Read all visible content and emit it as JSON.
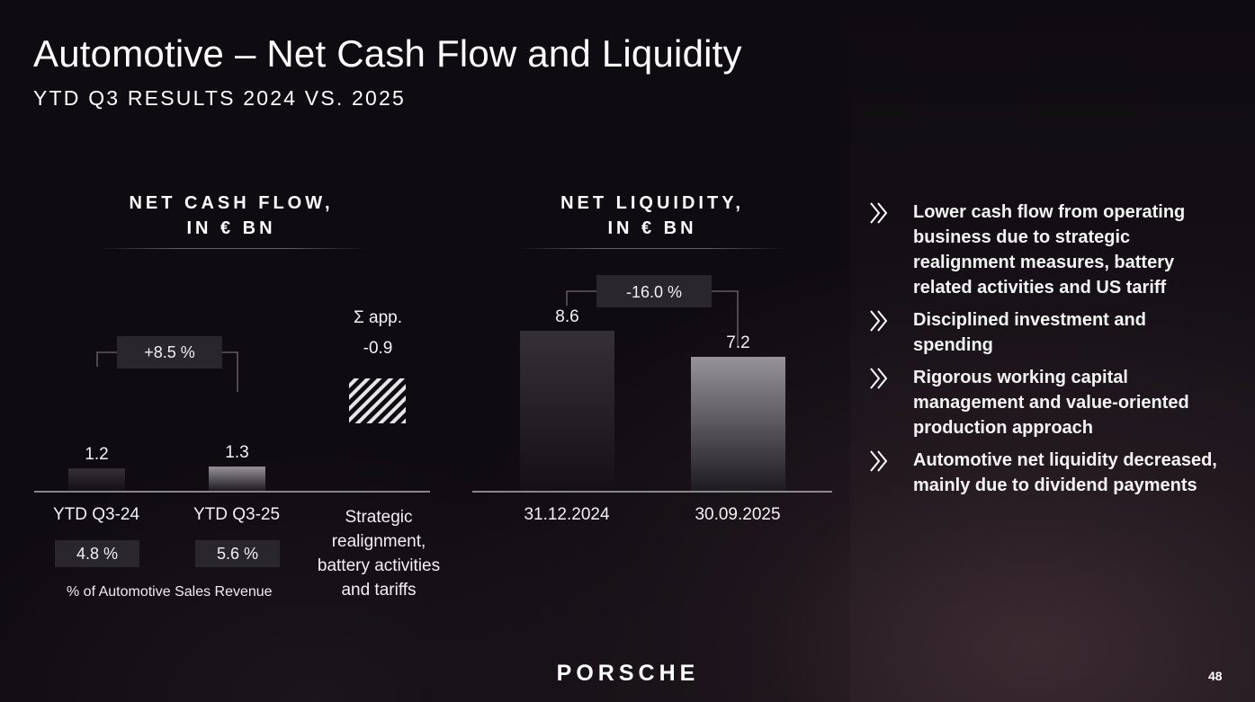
{
  "header": {
    "title": "Automotive – Net Cash Flow and Liquidity",
    "subtitle": "YTD Q3 RESULTS 2024 VS. 2025"
  },
  "chart_data": [
    {
      "type": "bar",
      "title": [
        "NET CASH FLOW,",
        "IN € BN"
      ],
      "categories": [
        "YTD Q3-24",
        "YTD Q3-25"
      ],
      "values": [
        1.2,
        1.3
      ],
      "value_labels": [
        "1.2",
        "1.3"
      ],
      "change_label": "+8.5 %",
      "ylim": [
        0,
        8.6
      ],
      "sub_values": [
        "4.8 %",
        "5.6 %"
      ],
      "sub_values_note": "% of Automotive Sales Revenue",
      "extra_item": {
        "symbol_label": "Σ app.",
        "value_label": "-0.9",
        "value": -0.9,
        "category_lines": [
          "Strategic",
          "realignment,",
          "battery activities",
          "and tariffs"
        ]
      }
    },
    {
      "type": "bar",
      "title": [
        "NET LIQUIDITY,",
        "IN € BN"
      ],
      "categories": [
        "31.12.2024",
        "30.09.2025"
      ],
      "values": [
        8.6,
        7.2
      ],
      "value_labels": [
        "8.6",
        "7.2"
      ],
      "change_label": "-16.0 %",
      "ylim": [
        0,
        8.6
      ]
    }
  ],
  "bullets": [
    "Lower cash flow from operating business due to strategic realignment measures, battery related activities and US tariff",
    "Disciplined investment and spending",
    "Rigorous working capital management and value-oriented production approach",
    "Automotive net liquidity decreased, mainly due to dividend payments"
  ],
  "footer": {
    "logo_text": "PORSCHE",
    "page_number": "48"
  },
  "colors": {
    "background": "#0f0c11",
    "bar_dark": "#2d2a30",
    "bar_light": "#8d8a90",
    "label_box": "#29262c",
    "text": "#ffffff"
  },
  "icons": {
    "bullet": "double-chevron-right-icon"
  }
}
